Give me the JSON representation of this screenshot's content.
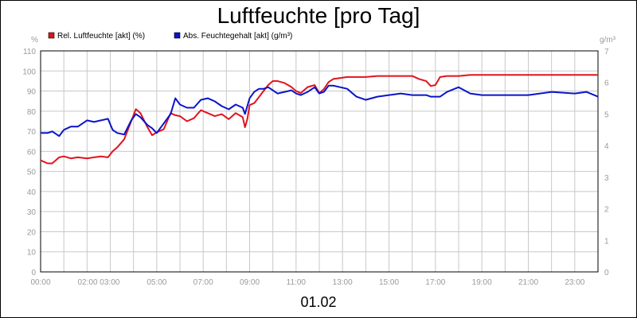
{
  "chart_data": {
    "type": "line",
    "title": "Luftfeuchte [pro Tag]",
    "date_label": "01.02",
    "left_unit": "%",
    "right_unit": "g/m³",
    "ylim_left": [
      0,
      110
    ],
    "ylim_right": [
      0,
      7
    ],
    "y_ticks_left": [
      0,
      10,
      20,
      30,
      40,
      50,
      60,
      70,
      80,
      90,
      100,
      110
    ],
    "y_ticks_right": [
      0,
      1,
      2,
      3,
      4,
      5,
      6,
      7
    ],
    "x_range_hours": [
      0,
      24
    ],
    "x_ticks": [
      {
        "h": 0,
        "label": "00:00"
      },
      {
        "h": 2.5,
        "label": "02:00 03:00"
      },
      {
        "h": 5,
        "label": "05:00"
      },
      {
        "h": 7,
        "label": "07:00"
      },
      {
        "h": 9,
        "label": "09:00"
      },
      {
        "h": 11,
        "label": "11:00"
      },
      {
        "h": 13,
        "label": "13:00"
      },
      {
        "h": 15,
        "label": "15:00"
      },
      {
        "h": 17,
        "label": "17:00"
      },
      {
        "h": 19,
        "label": "19:00"
      },
      {
        "h": 21,
        "label": "21:00"
      },
      {
        "h": 23,
        "label": "23:00"
      }
    ],
    "grid": true,
    "legend_position": "top-left",
    "series": [
      {
        "name": "Rel. Luftfeuchte [akt] (%)",
        "color": "#e0141e",
        "axis": "left",
        "x": [
          0,
          0.3,
          0.5,
          0.8,
          1.0,
          1.3,
          1.6,
          2.0,
          2.3,
          2.6,
          2.9,
          3.1,
          3.3,
          3.6,
          3.9,
          4.1,
          4.3,
          4.6,
          4.8,
          5.0,
          5.3,
          5.6,
          5.8,
          6.0,
          6.3,
          6.6,
          6.9,
          7.2,
          7.5,
          7.8,
          8.1,
          8.4,
          8.7,
          8.8,
          8.9,
          9.0,
          9.2,
          9.4,
          9.6,
          9.8,
          10.0,
          10.2,
          10.5,
          10.8,
          11.0,
          11.2,
          11.5,
          11.8,
          12.0,
          12.2,
          12.4,
          12.6,
          12.9,
          13.2,
          13.6,
          14.0,
          14.5,
          15.0,
          15.5,
          16.0,
          16.3,
          16.6,
          16.8,
          17.0,
          17.2,
          17.5,
          18.0,
          18.5,
          19.0,
          20.0,
          21.0,
          22.0,
          23.0,
          23.5,
          24.0
        ],
        "values": [
          55.5,
          54,
          54,
          57,
          57.5,
          56.5,
          57,
          56.5,
          57,
          57.5,
          57,
          60,
          62,
          66,
          75,
          81,
          79,
          72,
          68,
          69.5,
          71,
          79,
          78,
          77.5,
          75,
          76.5,
          80.5,
          79,
          77.5,
          78.5,
          76,
          79,
          77,
          72,
          76,
          83,
          84,
          87,
          90,
          93,
          95,
          95,
          94,
          92,
          90,
          89,
          92,
          93,
          89,
          91,
          94.5,
          96,
          96.5,
          97,
          97,
          97,
          97.5,
          97.5,
          97.5,
          97.5,
          96,
          95,
          92.5,
          93,
          97,
          97.5,
          97.5,
          98,
          98,
          98,
          98,
          98,
          98,
          98,
          98
        ]
      },
      {
        "name": "Abs. Feuchtegehalt [akt] (g/m³)",
        "color": "#0a14c8",
        "axis": "right",
        "x": [
          0,
          0.3,
          0.5,
          0.8,
          1.0,
          1.3,
          1.6,
          2.0,
          2.3,
          2.6,
          2.9,
          3.1,
          3.3,
          3.6,
          3.9,
          4.1,
          4.3,
          4.6,
          4.8,
          5.0,
          5.3,
          5.6,
          5.8,
          6.0,
          6.3,
          6.6,
          6.9,
          7.2,
          7.5,
          7.8,
          8.1,
          8.4,
          8.7,
          8.8,
          8.9,
          9.0,
          9.2,
          9.4,
          9.6,
          9.8,
          10.0,
          10.2,
          10.5,
          10.8,
          11.0,
          11.2,
          11.5,
          11.8,
          12.0,
          12.2,
          12.4,
          12.6,
          12.9,
          13.2,
          13.6,
          14.0,
          14.5,
          15.0,
          15.5,
          16.0,
          16.3,
          16.6,
          16.8,
          17.0,
          17.2,
          17.5,
          18.0,
          18.5,
          19.0,
          20.0,
          21.0,
          22.0,
          23.0,
          23.5,
          24.0
        ],
        "values": [
          4.4,
          4.4,
          4.45,
          4.3,
          4.5,
          4.6,
          4.6,
          4.8,
          4.75,
          4.8,
          4.85,
          4.5,
          4.4,
          4.35,
          4.8,
          5.0,
          4.9,
          4.65,
          4.55,
          4.4,
          4.7,
          5.0,
          5.5,
          5.3,
          5.2,
          5.2,
          5.45,
          5.5,
          5.4,
          5.25,
          5.15,
          5.3,
          5.2,
          5.0,
          5.25,
          5.5,
          5.7,
          5.8,
          5.8,
          5.85,
          5.75,
          5.65,
          5.7,
          5.75,
          5.65,
          5.6,
          5.7,
          5.85,
          5.65,
          5.7,
          5.9,
          5.9,
          5.85,
          5.8,
          5.55,
          5.45,
          5.55,
          5.6,
          5.65,
          5.6,
          5.6,
          5.6,
          5.55,
          5.55,
          5.55,
          5.7,
          5.85,
          5.65,
          5.6,
          5.6,
          5.6,
          5.7,
          5.65,
          5.7,
          5.55
        ]
      }
    ]
  }
}
